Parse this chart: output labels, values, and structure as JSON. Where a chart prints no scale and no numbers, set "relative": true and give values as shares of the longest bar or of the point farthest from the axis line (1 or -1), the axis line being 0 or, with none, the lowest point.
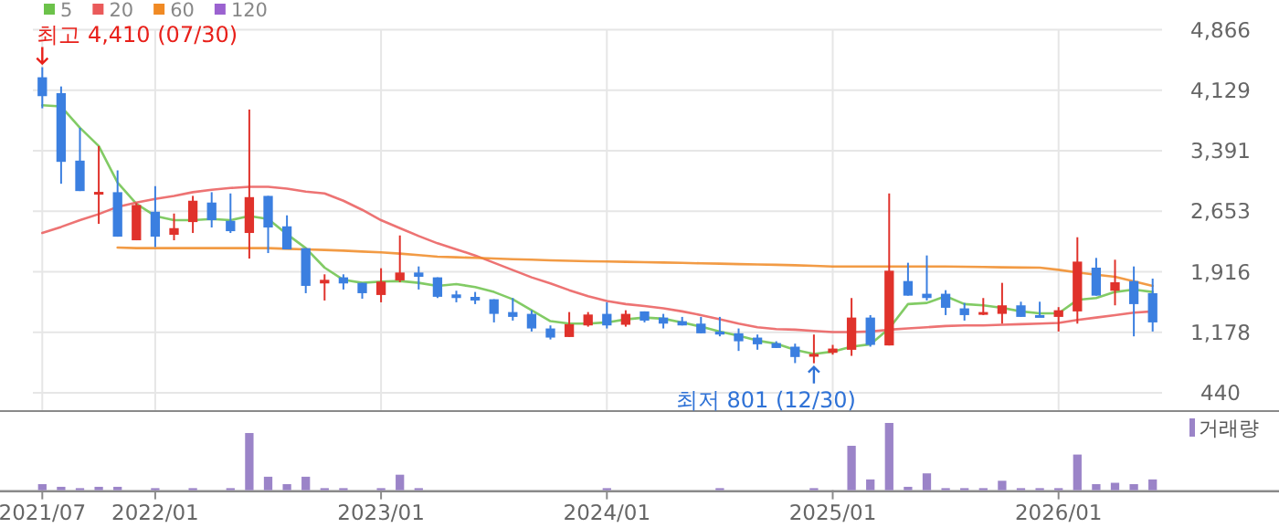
{
  "chart_data": [
    {
      "type": "candlestick",
      "categories": [
        "2021/07",
        null,
        null,
        null,
        null,
        null,
        "2022/01",
        null,
        null,
        null,
        null,
        null,
        null,
        null,
        null,
        null,
        null,
        null,
        "2023/01",
        null,
        null,
        null,
        null,
        null,
        null,
        null,
        null,
        null,
        null,
        null,
        "2024/01",
        null,
        null,
        null,
        null,
        null,
        null,
        null,
        null,
        null,
        null,
        null,
        "2025/01",
        null,
        null,
        null,
        null,
        null,
        null,
        null,
        null,
        null,
        null,
        null,
        "2026/01",
        null,
        null,
        null,
        null,
        null
      ],
      "ohlc": [
        [
          4287,
          4410,
          3909,
          4057
        ],
        [
          4094,
          4175,
          2989,
          3256
        ],
        [
          3271,
          3671,
          2900,
          2900
        ],
        [
          2886,
          3449,
          2500,
          2890
        ],
        [
          2886,
          3152,
          2344,
          2344
        ],
        [
          2300,
          2752,
          2300,
          2730
        ],
        [
          2648,
          2960,
          2218,
          2344
        ],
        [
          2367,
          2626,
          2300,
          2448
        ],
        [
          2522,
          2841,
          2389,
          2782
        ],
        [
          2760,
          2886,
          2456,
          2545
        ],
        [
          2537,
          2871,
          2389,
          2411
        ],
        [
          2389,
          3894,
          2077,
          2826
        ],
        [
          2841,
          2841,
          2144,
          2456
        ],
        [
          2470,
          2604,
          2189,
          2189
        ],
        [
          2204,
          2204,
          1655,
          1744
        ],
        [
          1774,
          1885,
          1566,
          1818
        ],
        [
          1848,
          1885,
          1700,
          1774
        ],
        [
          1781,
          1781,
          1588,
          1655
        ],
        [
          1633,
          1959,
          1544,
          1796
        ],
        [
          1811,
          2359,
          1788,
          1907
        ],
        [
          1907,
          1981,
          1700,
          1855
        ],
        [
          1848,
          1848,
          1596,
          1611
        ],
        [
          1640,
          1685,
          1544,
          1596
        ],
        [
          1610,
          1670,
          1522,
          1566
        ],
        [
          1581,
          1581,
          1299,
          1403
        ],
        [
          1425,
          1596,
          1321,
          1366
        ],
        [
          1403,
          1447,
          1188,
          1225
        ],
        [
          1225,
          1262,
          1091,
          1114
        ],
        [
          1121,
          1425,
          1121,
          1277
        ],
        [
          1262,
          1425,
          1247,
          1395
        ],
        [
          1403,
          1544,
          1225,
          1262
        ],
        [
          1270,
          1447,
          1247,
          1403
        ],
        [
          1433,
          1433,
          1299,
          1321
        ],
        [
          1358,
          1403,
          1225,
          1284
        ],
        [
          1314,
          1366,
          1262,
          1262
        ],
        [
          1284,
          1366,
          1166,
          1166
        ],
        [
          1188,
          1366,
          1129,
          1151
        ],
        [
          1166,
          1225,
          951,
          1069
        ],
        [
          1114,
          1151,
          966,
          1032
        ],
        [
          1047,
          1069,
          987,
          987
        ],
        [
          1003,
          1040,
          803,
          877
        ],
        [
          891,
          1151,
          801,
          914
        ],
        [
          928,
          1025,
          906,
          980
        ],
        [
          965,
          1596,
          891,
          1358
        ],
        [
          1358,
          1388,
          1003,
          1025
        ],
        [
          1018,
          2871,
          1018,
          1929
        ],
        [
          1803,
          2026,
          1625,
          1625
        ],
        [
          1648,
          2115,
          1566,
          1596
        ],
        [
          1648,
          1692,
          1388,
          1477
        ],
        [
          1470,
          1536,
          1321,
          1388
        ],
        [
          1403,
          1596,
          1388,
          1425
        ],
        [
          1403,
          1781,
          1284,
          1507
        ],
        [
          1507,
          1551,
          1366,
          1366
        ],
        [
          1388,
          1551,
          1366,
          1366
        ],
        [
          1366,
          1485,
          1188,
          1447
        ],
        [
          1433,
          2337,
          1284,
          2040
        ],
        [
          1966,
          2085,
          1625,
          1625
        ],
        [
          1685,
          2063,
          1507,
          1788
        ],
        [
          1803,
          1981,
          1129,
          1522
        ],
        [
          1655,
          1833,
          1188,
          1299
        ]
      ],
      "colors": [
        "#3b7fe0",
        "#3b7fe0",
        "#3b7fe0",
        "#e0322b",
        "#3b7fe0",
        "#e0322b",
        "#3b7fe0",
        "#e0322b",
        "#e0322b",
        "#3b7fe0",
        "#3b7fe0",
        "#e0322b",
        "#3b7fe0",
        "#3b7fe0",
        "#3b7fe0",
        "#e0322b",
        "#3b7fe0",
        "#3b7fe0",
        "#e0322b",
        "#e0322b",
        "#3b7fe0",
        "#3b7fe0",
        "#3b7fe0",
        "#3b7fe0",
        "#3b7fe0",
        "#3b7fe0",
        "#3b7fe0",
        "#3b7fe0",
        "#e0322b",
        "#e0322b",
        "#3b7fe0",
        "#e0322b",
        "#3b7fe0",
        "#3b7fe0",
        "#3b7fe0",
        "#3b7fe0",
        "#3b7fe0",
        "#3b7fe0",
        "#3b7fe0",
        "#3b7fe0",
        "#3b7fe0",
        "#e0322b",
        "#e0322b",
        "#e0322b",
        "#3b7fe0",
        "#e0322b",
        "#3b7fe0",
        "#3b7fe0",
        "#3b7fe0",
        "#3b7fe0",
        "#e0322b",
        "#e0322b",
        "#3b7fe0",
        "#3b7fe0",
        "#e0322b",
        "#e0322b",
        "#3b7fe0",
        "#e0322b",
        "#3b7fe0",
        "#3b7fe0"
      ],
      "series": [
        {
          "name": "5",
          "type": "line",
          "color": "#6cc24a",
          "values": [
            3946,
            3931,
            3671,
            3449,
            3004,
            2745,
            2596,
            2545,
            2545,
            2559,
            2545,
            2596,
            2559,
            2374,
            2204,
            1966,
            1818,
            1781,
            1796,
            1803,
            1781,
            1744,
            1766,
            1729,
            1670,
            1581,
            1447,
            1314,
            1284,
            1284,
            1299,
            1336,
            1358,
            1344,
            1299,
            1247,
            1188,
            1136,
            1077,
            1040,
            965,
            914,
            943,
            1003,
            1032,
            1225,
            1522,
            1536,
            1618,
            1522,
            1507,
            1477,
            1433,
            1410,
            1410,
            1573,
            1596,
            1670,
            1700,
            1670
          ]
        },
        {
          "name": "20",
          "type": "line",
          "color": "#ea5a5a",
          "values": [
            2389,
            2463,
            2545,
            2619,
            2708,
            2760,
            2804,
            2841,
            2886,
            2915,
            2937,
            2952,
            2952,
            2930,
            2893,
            2871,
            2782,
            2671,
            2545,
            2448,
            2352,
            2263,
            2189,
            2115,
            2026,
            1937,
            1848,
            1774,
            1692,
            1618,
            1559,
            1522,
            1499,
            1470,
            1433,
            1388,
            1336,
            1284,
            1240,
            1218,
            1210,
            1195,
            1181,
            1181,
            1188,
            1210,
            1225,
            1240,
            1255,
            1262,
            1262,
            1270,
            1277,
            1284,
            1292,
            1329,
            1358,
            1388,
            1418,
            1433
          ]
        },
        {
          "name": "60",
          "type": "line",
          "color": "#f08a24",
          "values": [
            null,
            null,
            null,
            null,
            2211,
            2204,
            2204,
            2204,
            2204,
            2204,
            2204,
            2204,
            2204,
            2196,
            2189,
            2182,
            2174,
            2163,
            2152,
            2137,
            2119,
            2100,
            2093,
            2086,
            2078,
            2070,
            2063,
            2056,
            2050,
            2045,
            2041,
            2037,
            2033,
            2029,
            2024,
            2019,
            2015,
            2010,
            2006,
            2001,
            1996,
            1989,
            1981,
            1981,
            1981,
            1981,
            1981,
            1981,
            1981,
            1978,
            1974,
            1971,
            1968,
            1966,
            1940,
            1907,
            1880,
            1855,
            1800,
            1744
          ]
        },
        {
          "name": "120",
          "type": "line",
          "color": "#9b62d0",
          "values": [
            null,
            null,
            null,
            null,
            null,
            null,
            null,
            null,
            null,
            null,
            null,
            null,
            null,
            null,
            null,
            null,
            null,
            null,
            null,
            null,
            null,
            null,
            null,
            null,
            null,
            null,
            null,
            null,
            null,
            null,
            null,
            null,
            null,
            null,
            null,
            null,
            null,
            null,
            null,
            null,
            null,
            null,
            null,
            null,
            null,
            null,
            null,
            null,
            null,
            null,
            null,
            null,
            null,
            null,
            null,
            null,
            null,
            null,
            null,
            null
          ]
        }
      ],
      "ylim": [
        218,
        4866
      ],
      "yticks": [
        440,
        {
          "value": 1178,
          "label": "1,178"
        },
        {
          "value": 1916,
          "label": "1,916"
        },
        {
          "value": 2653,
          "label": "2,653"
        },
        {
          "value": 3391,
          "label": "3,391"
        },
        {
          "value": 4129,
          "label": "4,129"
        },
        {
          "value": 4866,
          "label": "4,866"
        }
      ],
      "grid": true,
      "legend": "top left",
      "tick_labels": "y",
      "annotations": [
        "최고 4,410 (07/30)",
        "최저 801 (12/30)"
      ]
    },
    {
      "type": "bar",
      "relative": true,
      "categories": [
        "2021/07",
        null,
        null,
        null,
        null,
        null,
        "2022/01",
        null,
        null,
        null,
        null,
        null,
        null,
        null,
        null,
        null,
        null,
        null,
        "2023/01",
        null,
        null,
        null,
        null,
        null,
        null,
        null,
        null,
        null,
        null,
        null,
        "2024/01",
        null,
        null,
        null,
        null,
        null,
        null,
        null,
        null,
        null,
        null,
        null,
        "2025/01",
        null,
        null,
        null,
        null,
        null,
        null,
        null,
        null,
        null,
        null,
        null,
        "2026/01",
        null,
        null,
        null,
        null,
        null
      ],
      "series": [
        {
          "name": "거래량",
          "color": "#9b84c8",
          "values": [
            0.09,
            0.05,
            0.03,
            0.05,
            0.05,
            null,
            0.03,
            null,
            0.03,
            null,
            0.03,
            0.85,
            0.2,
            0.09,
            0.2,
            0.03,
            0.03,
            null,
            0.03,
            0.23,
            0.03,
            null,
            null,
            null,
            null,
            null,
            null,
            null,
            null,
            null,
            0.03,
            null,
            null,
            null,
            null,
            null,
            0.03,
            null,
            null,
            null,
            null,
            0.03,
            null,
            0.66,
            0.16,
            1,
            0.05,
            0.25,
            0.03,
            0.03,
            0.03,
            0.14,
            0.03,
            0.03,
            0.03,
            0.53,
            0.09,
            0.11,
            0.09,
            0.16
          ]
        }
      ],
      "legend": "top right",
      "tick_labels": "x"
    }
  ]
}
